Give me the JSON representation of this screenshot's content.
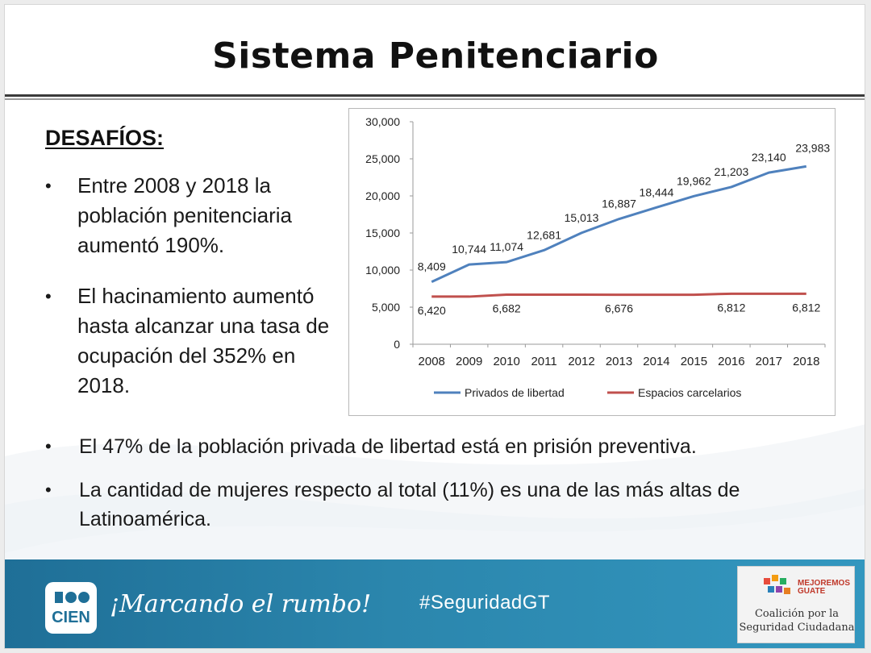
{
  "title": "Sistema Penitenciario",
  "left_panel": {
    "heading": "DESAFÍOS:",
    "bullets": [
      "Entre 2008 y 2018 la población penitenciaria aumentó 190%.",
      "El hacinamiento aumentó hasta alcanzar una tasa de ocupación del 352% en 2018."
    ]
  },
  "bottom_bullets": [
    "El 47% de la población privada de libertad  está en prisión preventiva.",
    "La cantidad de mujeres respecto al total (11%) es una de las más altas de Latinoamérica."
  ],
  "bullet_glyph": "•",
  "footer": {
    "logo_text": "CIEN",
    "slogan": "¡Marcando el rumbo!",
    "hashtag": "#SeguridadGT",
    "partner_logo_top": "MEJOREMOS GUATE",
    "partner_name_line1": "Coalición por la",
    "partner_name_line2": "Seguridad Ciudadana"
  },
  "colors": {
    "series_privados": "#4f81bd",
    "series_espacios": "#c0504d",
    "footer_blue": "#2b86ad"
  },
  "chart_data": {
    "type": "line",
    "title": "",
    "xlabel": "",
    "ylabel": "",
    "x": [
      "2008",
      "2009",
      "2010",
      "2011",
      "2012",
      "2013",
      "2014",
      "2015",
      "2016",
      "2017",
      "2018"
    ],
    "ylim": [
      0,
      30000
    ],
    "y_ticks": [
      "0",
      "5,000",
      "10,000",
      "15,000",
      "20,000",
      "25,000",
      "30,000"
    ],
    "y_tick_values": [
      0,
      5000,
      10000,
      15000,
      20000,
      25000,
      30000
    ],
    "grid": false,
    "legend": "bottom",
    "series": [
      {
        "name": "Privados de libertad",
        "values": [
          8409,
          10744,
          11074,
          12681,
          15013,
          16887,
          18444,
          19962,
          21203,
          23140,
          23983
        ],
        "labels": [
          "8,409",
          "10,744",
          "11,074",
          "12,681",
          "15,013",
          "16,887",
          "18,444",
          "19,962",
          "21,203",
          "23,140",
          "23,983"
        ]
      },
      {
        "name": "Espacios carcelarios",
        "values": [
          6420,
          6420,
          6682,
          6682,
          6682,
          6676,
          6676,
          6676,
          6812,
          6812,
          6812
        ],
        "labeled_points": [
          {
            "index": 0,
            "label": "6,420"
          },
          {
            "index": 2,
            "label": "6,682"
          },
          {
            "index": 5,
            "label": "6,676"
          },
          {
            "index": 8,
            "label": "6,812"
          },
          {
            "index": 10,
            "label": "6,812"
          }
        ]
      }
    ]
  }
}
